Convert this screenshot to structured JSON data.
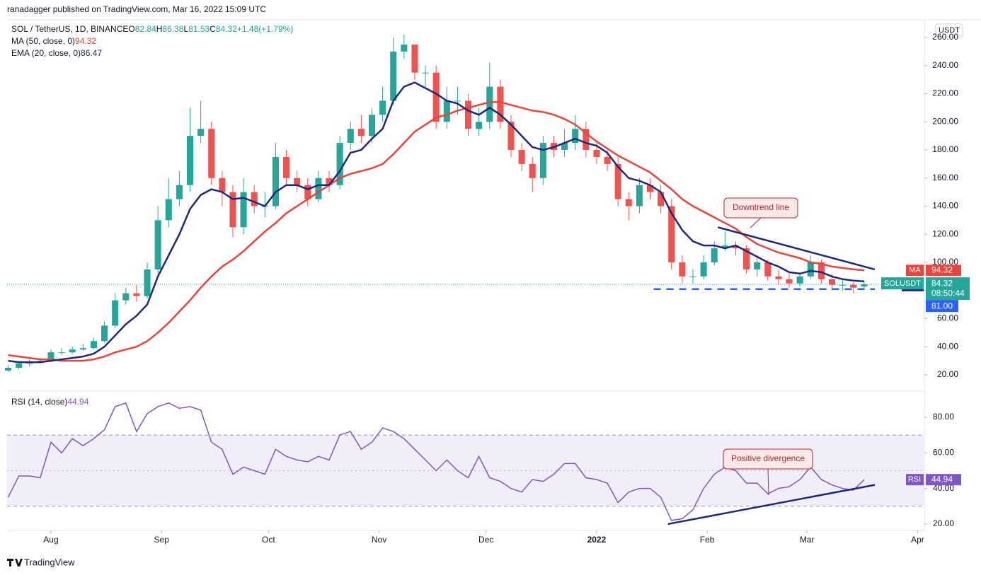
{
  "chart_data": {
    "type": "candlestick",
    "publisher": "ranadagger published on TradingView.com, Mar 16, 2022 15:09 UTC",
    "title": "SOL / TetherUS, 1D, BINANCE",
    "ohlc_keys": [
      "O",
      "H",
      "L",
      "C"
    ],
    "legend_ohlc": [
      82.84,
      86.38,
      81.53,
      84.32
    ],
    "change": {
      "value": 1.48,
      "label": "+1.48"
    },
    "change_pct": {
      "value": 1.79,
      "label": "(+1.79%)"
    },
    "x": [
      0,
      3,
      6,
      9,
      12,
      15,
      18,
      21,
      24,
      27,
      30,
      33,
      36,
      39,
      42,
      45,
      48,
      51,
      54,
      57,
      60,
      63,
      66,
      69,
      72,
      75,
      78,
      81,
      84,
      87,
      90,
      93,
      96,
      99,
      102,
      105,
      108,
      111,
      114,
      117,
      120,
      123,
      126,
      129,
      132,
      135,
      138,
      141,
      144,
      147,
      150,
      153,
      156,
      159,
      162,
      165,
      168,
      171,
      174,
      177,
      180,
      183,
      186,
      189,
      192,
      195,
      198,
      201,
      204,
      207,
      210,
      213,
      216,
      219,
      222,
      225,
      228,
      231,
      234,
      237,
      240
    ],
    "xlim": [
      -0.3,
      256.7
    ],
    "xticks": [
      {
        "value": 12,
        "label": "Aug"
      },
      {
        "value": 43,
        "label": "Sep"
      },
      {
        "value": 73,
        "label": "Oct"
      },
      {
        "value": 104,
        "label": "Nov"
      },
      {
        "value": 134,
        "label": "Dec"
      },
      {
        "value": 165,
        "label": "2022"
      },
      {
        "value": 196,
        "label": "Feb"
      },
      {
        "value": 224,
        "label": "Mar"
      },
      {
        "value": 255,
        "label": "Apr"
      }
    ],
    "open": [
      23,
      25,
      28,
      29,
      30,
      36,
      36,
      38,
      39,
      44,
      55,
      73,
      78,
      76,
      95,
      130,
      145,
      155,
      190,
      195,
      160,
      150,
      125,
      150,
      140,
      140,
      175,
      160,
      155,
      145,
      160,
      155,
      185,
      195,
      190,
      205,
      215,
      250,
      255,
      235,
      235,
      200,
      215,
      215,
      195,
      200,
      225,
      200,
      180,
      170,
      160,
      185,
      180,
      185,
      195,
      180,
      175,
      170,
      145,
      140,
      155,
      150,
      140,
      100,
      90,
      90,
      100,
      110,
      112,
      110,
      95,
      100,
      90,
      88,
      85,
      90,
      100,
      88,
      84,
      84,
      82.84
    ],
    "high": [
      27,
      30,
      31,
      32,
      38,
      39,
      40,
      42,
      46,
      58,
      78,
      82,
      84,
      100,
      140,
      160,
      165,
      210,
      215,
      200,
      165,
      155,
      160,
      155,
      150,
      185,
      180,
      165,
      160,
      165,
      165,
      190,
      200,
      205,
      210,
      225,
      260,
      262,
      255,
      240,
      240,
      225,
      225,
      220,
      210,
      242,
      230,
      205,
      185,
      175,
      190,
      190,
      195,
      205,
      200,
      185,
      180,
      175,
      150,
      160,
      160,
      155,
      145,
      105,
      95,
      105,
      115,
      122,
      115,
      112,
      105,
      102,
      95,
      92,
      93,
      105,
      102,
      92,
      88,
      86,
      86.38
    ],
    "low": [
      22,
      24,
      26,
      28,
      29,
      34,
      35,
      37,
      38,
      43,
      53,
      70,
      72,
      74,
      92,
      125,
      140,
      150,
      185,
      155,
      140,
      118,
      120,
      135,
      132,
      138,
      155,
      150,
      140,
      143,
      150,
      152,
      180,
      185,
      185,
      200,
      212,
      245,
      230,
      225,
      195,
      195,
      205,
      190,
      190,
      195,
      195,
      175,
      165,
      150,
      155,
      175,
      175,
      180,
      175,
      170,
      165,
      140,
      130,
      135,
      145,
      135,
      95,
      85,
      85,
      88,
      98,
      108,
      105,
      92,
      90,
      87,
      84,
      82,
      83,
      88,
      85,
      80,
      80,
      78,
      81.53
    ],
    "close": [
      25,
      28,
      29,
      30,
      36,
      36,
      38,
      39,
      44,
      55,
      73,
      78,
      76,
      95,
      130,
      145,
      155,
      190,
      195,
      160,
      150,
      125,
      150,
      140,
      140,
      175,
      160,
      155,
      145,
      160,
      155,
      185,
      195,
      190,
      205,
      215,
      250,
      255,
      235,
      235,
      200,
      215,
      215,
      195,
      200,
      225,
      200,
      180,
      170,
      160,
      185,
      180,
      185,
      195,
      180,
      175,
      170,
      145,
      140,
      155,
      150,
      140,
      100,
      90,
      90,
      100,
      110,
      112,
      110,
      95,
      100,
      90,
      88,
      85,
      90,
      100,
      88,
      84,
      84,
      82,
      84.32
    ],
    "up_color": "#26a69a",
    "down_color": "#ef5350",
    "ylim": [
      8.4,
      272.6
    ],
    "yticks": [
      {
        "value": 20,
        "label": "20.00"
      },
      {
        "value": 40,
        "label": "40.00"
      },
      {
        "value": 60,
        "label": "60.00"
      },
      {
        "value": 80,
        "label": "80.00"
      },
      {
        "value": 100,
        "label": "100.00"
      },
      {
        "value": 120,
        "label": "120.00"
      },
      {
        "value": 140,
        "label": "140.00"
      },
      {
        "value": 160,
        "label": "160.00"
      },
      {
        "value": 180,
        "label": "180.00"
      },
      {
        "value": 200,
        "label": "200.00"
      },
      {
        "value": 220,
        "label": "220.00"
      },
      {
        "value": 240,
        "label": "240.00"
      },
      {
        "value": 260,
        "label": "260.00"
      }
    ],
    "y_unit": "USDT",
    "symbol": "SOLUSDT",
    "countdown": "08:50:44",
    "series": [
      {
        "name": "MA (50, close, 0)",
        "tag": "MA",
        "color": "#e8453c",
        "values": [
          34,
          33,
          32,
          31,
          31,
          30,
          30,
          30,
          31,
          33,
          36,
          38,
          40,
          44,
          50,
          57,
          65,
          73,
          82,
          90,
          97,
          102,
          108,
          115,
          122,
          128,
          135,
          140,
          145,
          150,
          155,
          160,
          163,
          165,
          167,
          170,
          177,
          185,
          193,
          198,
          203,
          205,
          208,
          210,
          212,
          214,
          214,
          212,
          210,
          208,
          207,
          205,
          202,
          198,
          192,
          186,
          181,
          176,
          172,
          168,
          164,
          158,
          152,
          145,
          140,
          136,
          132,
          128,
          124,
          118,
          113,
          110,
          107,
          105,
          103,
          100,
          99,
          97,
          96,
          95,
          94.32
        ]
      },
      {
        "name": "EMA (20, close, 0)",
        "tag": "EMA",
        "color": "#1e2a78",
        "values": [
          30,
          29,
          29,
          29,
          30,
          31,
          32,
          33,
          35,
          40,
          48,
          56,
          62,
          70,
          90,
          105,
          120,
          138,
          148,
          152,
          150,
          145,
          146,
          143,
          140,
          150,
          155,
          155,
          152,
          155,
          155,
          165,
          178,
          180,
          188,
          195,
          215,
          225,
          228,
          224,
          220,
          215,
          213,
          208,
          205,
          210,
          205,
          198,
          190,
          182,
          180,
          182,
          185,
          188,
          185,
          183,
          178,
          168,
          160,
          158,
          155,
          150,
          135,
          123,
          115,
          112,
          112,
          110,
          112,
          108,
          104,
          100,
          97,
          93,
          92,
          94,
          93,
          90,
          88,
          87,
          86.47
        ]
      }
    ],
    "trendline": {
      "text": "Downtrend line",
      "x": [
        199,
        243
      ],
      "y": [
        125,
        95
      ],
      "color": "#1e2a78"
    },
    "support": {
      "x": [
        181,
        243
      ],
      "y": 81,
      "label": "81.00",
      "color": "#2962ff"
    },
    "rsi": {
      "type": "line",
      "name": "RSI (14, close)",
      "tag": "RSI",
      "color": "#7e57c2",
      "values": [
        35,
        47,
        47,
        46,
        66,
        60,
        68,
        64,
        68,
        73,
        86,
        88,
        72,
        82,
        86,
        88,
        85,
        86,
        84,
        66,
        62,
        48,
        52,
        50,
        48,
        62,
        58,
        56,
        55,
        58,
        56,
        70,
        72,
        62,
        66,
        74,
        72,
        68,
        62,
        56,
        50,
        56,
        50,
        46,
        58,
        46,
        44,
        40,
        38,
        45,
        44,
        48,
        54,
        54,
        46,
        45,
        43,
        32,
        38,
        40,
        40,
        35,
        22,
        23,
        28,
        40,
        48,
        52,
        50,
        43,
        43,
        37,
        40,
        41,
        45,
        52,
        45,
        42,
        40,
        39,
        44.94
      ],
      "ylim": [
        16.4,
        93.9
      ],
      "yticks": [
        {
          "value": 20,
          "label": "20.00"
        },
        {
          "value": 40,
          "label": "40.00"
        },
        {
          "value": 60,
          "label": "60.00"
        },
        {
          "value": 80,
          "label": "80.00"
        }
      ],
      "bands": [
        30,
        70
      ],
      "midline": 50,
      "trendline": {
        "text": "Positive divergence",
        "x": [
          185,
          243
        ],
        "y": [
          20,
          42
        ],
        "color": "#1e2a78"
      }
    },
    "brand": "TradingView"
  }
}
